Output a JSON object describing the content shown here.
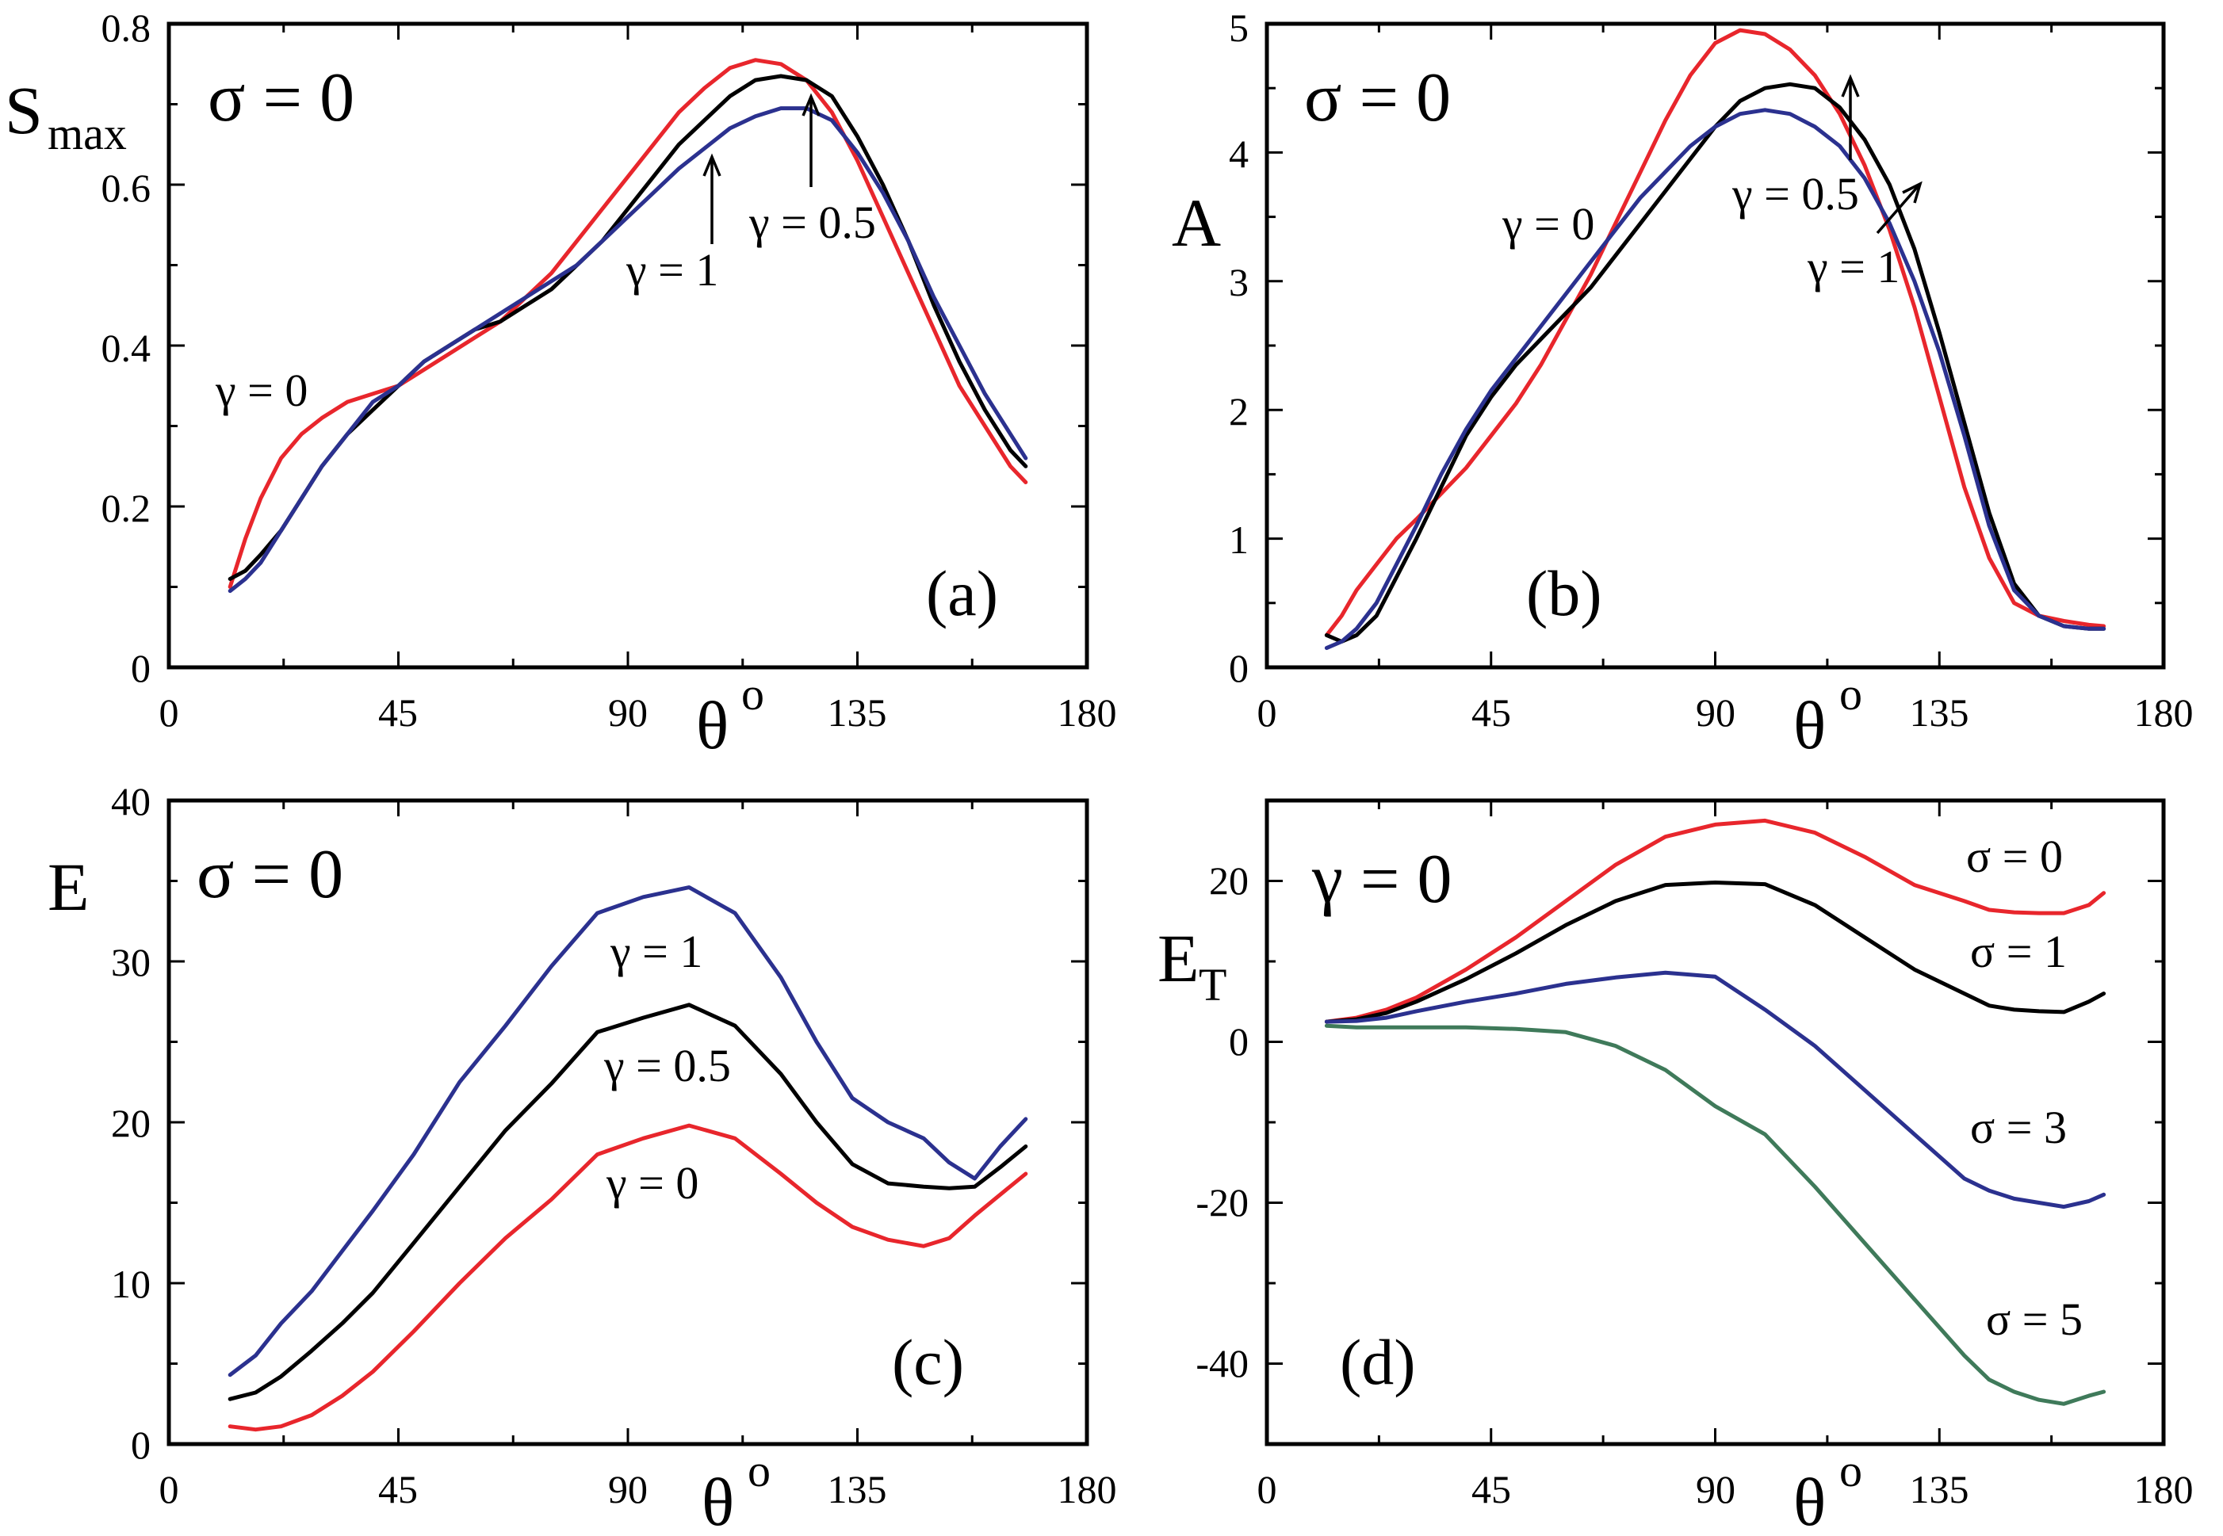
{
  "figure": "four-panel line chart figure",
  "chart_data": [
    {
      "type": "line",
      "panel": "(a)",
      "header": "σ = 0",
      "ylabel": "S",
      "ylabel_sub": "max",
      "xlabel": "θ",
      "xlabel_sup": "o",
      "xlim": [
        0,
        180
      ],
      "ylim": [
        0,
        0.8
      ],
      "xticks": [
        0,
        45,
        90,
        135,
        180
      ],
      "yticks": [
        0,
        0.2,
        0.4,
        0.6,
        0.8
      ],
      "ytick_labels": [
        "0",
        "0.2",
        "0.4",
        "0.6",
        "0.8"
      ],
      "series": [
        {
          "name": "γ = 0",
          "color": "#e8262c",
          "x": [
            12,
            15,
            18,
            22,
            26,
            30,
            35,
            40,
            45,
            50,
            55,
            60,
            65,
            70,
            75,
            80,
            85,
            90,
            95,
            100,
            105,
            110,
            115,
            120,
            125,
            130,
            135,
            140,
            145,
            150,
            155,
            160,
            165,
            168
          ],
          "y": [
            0.1,
            0.16,
            0.21,
            0.26,
            0.29,
            0.31,
            0.33,
            0.34,
            0.35,
            0.37,
            0.39,
            0.41,
            0.43,
            0.46,
            0.49,
            0.53,
            0.57,
            0.61,
            0.65,
            0.69,
            0.72,
            0.745,
            0.755,
            0.75,
            0.73,
            0.69,
            0.63,
            0.56,
            0.49,
            0.42,
            0.35,
            0.3,
            0.25,
            0.23
          ]
        },
        {
          "name": "γ = 0.5",
          "color": "#000000",
          "x": [
            12,
            15,
            18,
            22,
            26,
            30,
            35,
            40,
            45,
            50,
            55,
            60,
            65,
            70,
            75,
            80,
            85,
            90,
            95,
            100,
            105,
            110,
            115,
            120,
            125,
            130,
            135,
            140,
            145,
            150,
            155,
            160,
            165,
            168
          ],
          "y": [
            0.11,
            0.12,
            0.14,
            0.17,
            0.21,
            0.25,
            0.29,
            0.32,
            0.35,
            0.38,
            0.4,
            0.42,
            0.43,
            0.45,
            0.47,
            0.5,
            0.53,
            0.57,
            0.61,
            0.65,
            0.68,
            0.71,
            0.73,
            0.735,
            0.73,
            0.71,
            0.66,
            0.6,
            0.53,
            0.45,
            0.38,
            0.32,
            0.27,
            0.25
          ]
        },
        {
          "name": "γ = 1",
          "color": "#2b318f",
          "x": [
            12,
            15,
            18,
            22,
            26,
            30,
            35,
            40,
            45,
            50,
            55,
            60,
            65,
            70,
            75,
            80,
            85,
            90,
            95,
            100,
            105,
            110,
            115,
            120,
            125,
            130,
            135,
            140,
            145,
            150,
            155,
            160,
            165,
            168
          ],
          "y": [
            0.095,
            0.11,
            0.13,
            0.17,
            0.21,
            0.25,
            0.29,
            0.33,
            0.35,
            0.38,
            0.4,
            0.42,
            0.44,
            0.46,
            0.48,
            0.5,
            0.53,
            0.56,
            0.59,
            0.62,
            0.645,
            0.67,
            0.685,
            0.695,
            0.695,
            0.68,
            0.64,
            0.59,
            0.53,
            0.46,
            0.4,
            0.34,
            0.29,
            0.26
          ]
        }
      ],
      "annotations": [
        "γ = 0",
        "γ = 1",
        "γ = 0.5"
      ]
    },
    {
      "type": "line",
      "panel": "(b)",
      "header": "σ = 0",
      "ylabel": "A",
      "xlabel": "θ",
      "xlabel_sup": "o",
      "xlim": [
        0,
        180
      ],
      "ylim": [
        0,
        5
      ],
      "xticks": [
        0,
        45,
        90,
        135,
        180
      ],
      "yticks": [
        0,
        1,
        2,
        3,
        4,
        5
      ],
      "ytick_labels": [
        "0",
        "1",
        "2",
        "3",
        "4",
        "5"
      ],
      "series": [
        {
          "name": "γ = 0",
          "color": "#e8262c",
          "x": [
            12,
            15,
            18,
            22,
            26,
            30,
            35,
            40,
            45,
            50,
            55,
            60,
            65,
            70,
            75,
            80,
            85,
            90,
            95,
            100,
            105,
            110,
            115,
            120,
            125,
            130,
            135,
            140,
            145,
            150,
            155,
            160,
            165,
            168
          ],
          "y": [
            0.25,
            0.4,
            0.6,
            0.8,
            1.0,
            1.15,
            1.35,
            1.55,
            1.8,
            2.05,
            2.35,
            2.7,
            3.05,
            3.45,
            3.85,
            4.25,
            4.6,
            4.85,
            4.95,
            4.92,
            4.8,
            4.6,
            4.3,
            3.9,
            3.4,
            2.8,
            2.1,
            1.4,
            0.85,
            0.5,
            0.4,
            0.36,
            0.33,
            0.32
          ]
        },
        {
          "name": "γ = 0.5",
          "color": "#000000",
          "x": [
            12,
            15,
            18,
            22,
            26,
            30,
            35,
            40,
            45,
            50,
            55,
            60,
            65,
            70,
            75,
            80,
            85,
            90,
            95,
            100,
            105,
            110,
            115,
            120,
            125,
            130,
            135,
            140,
            145,
            150,
            155,
            160,
            165,
            168
          ],
          "y": [
            0.25,
            0.2,
            0.25,
            0.4,
            0.7,
            1.0,
            1.4,
            1.8,
            2.1,
            2.35,
            2.55,
            2.75,
            2.95,
            3.2,
            3.45,
            3.7,
            3.95,
            4.2,
            4.4,
            4.5,
            4.53,
            4.5,
            4.35,
            4.1,
            3.75,
            3.25,
            2.6,
            1.9,
            1.2,
            0.65,
            0.4,
            0.32,
            0.3,
            0.3
          ]
        },
        {
          "name": "γ = 1",
          "color": "#2b318f",
          "x": [
            12,
            15,
            18,
            22,
            26,
            30,
            35,
            40,
            45,
            50,
            55,
            60,
            65,
            70,
            75,
            80,
            85,
            90,
            95,
            100,
            105,
            110,
            115,
            120,
            125,
            130,
            135,
            140,
            145,
            150,
            155,
            160,
            165,
            168
          ],
          "y": [
            0.15,
            0.2,
            0.3,
            0.5,
            0.8,
            1.1,
            1.5,
            1.85,
            2.15,
            2.4,
            2.65,
            2.9,
            3.15,
            3.4,
            3.65,
            3.85,
            4.05,
            4.2,
            4.3,
            4.33,
            4.3,
            4.2,
            4.05,
            3.8,
            3.45,
            3.0,
            2.45,
            1.8,
            1.1,
            0.6,
            0.4,
            0.32,
            0.3,
            0.3
          ]
        }
      ],
      "annotations": [
        "γ = 0",
        "γ = 0.5",
        "γ = 1"
      ]
    },
    {
      "type": "line",
      "panel": "(c)",
      "header": "σ = 0",
      "ylabel": "E",
      "xlabel": "θ",
      "xlabel_sup": "o",
      "xlim": [
        0,
        180
      ],
      "ylim": [
        0,
        40
      ],
      "xticks": [
        0,
        45,
        90,
        135,
        180
      ],
      "yticks": [
        0,
        10,
        20,
        30,
        40
      ],
      "ytick_labels": [
        "0",
        "10",
        "20",
        "30",
        "40"
      ],
      "series": [
        {
          "name": "γ = 1",
          "color": "#2b318f",
          "x": [
            12,
            17,
            22,
            28,
            34,
            40,
            48,
            57,
            66,
            75,
            84,
            93,
            102,
            111,
            120,
            127,
            134,
            141,
            148,
            153,
            158,
            163,
            168
          ],
          "y": [
            4.3,
            5.5,
            7.5,
            9.5,
            12,
            14.5,
            18,
            22.5,
            26,
            29.7,
            33,
            34,
            34.6,
            33,
            29,
            25,
            21.5,
            20,
            19,
            17.5,
            16.5,
            18.5,
            20.2
          ]
        },
        {
          "name": "γ = 0.5",
          "color": "#000000",
          "x": [
            12,
            17,
            22,
            28,
            34,
            40,
            48,
            57,
            66,
            75,
            84,
            93,
            102,
            111,
            120,
            127,
            134,
            141,
            148,
            153,
            158,
            163,
            168
          ],
          "y": [
            2.8,
            3.2,
            4.2,
            5.8,
            7.5,
            9.4,
            12.5,
            16,
            19.5,
            22.4,
            25.6,
            26.5,
            27.3,
            26,
            23,
            20,
            17.4,
            16.2,
            16.0,
            15.9,
            16.0,
            17.2,
            18.5
          ]
        },
        {
          "name": "γ = 0",
          "color": "#e8262c",
          "x": [
            12,
            17,
            22,
            28,
            34,
            40,
            48,
            57,
            66,
            75,
            84,
            93,
            102,
            111,
            120,
            127,
            134,
            141,
            148,
            153,
            158,
            163,
            168
          ],
          "y": [
            1.1,
            0.9,
            1.1,
            1.8,
            3.0,
            4.5,
            7,
            10,
            12.8,
            15.2,
            18,
            19,
            19.8,
            19,
            16.8,
            15,
            13.5,
            12.7,
            12.3,
            12.8,
            14.2,
            15.5,
            16.8
          ]
        }
      ],
      "annotations": [
        "γ = 1",
        "γ = 0.5",
        "γ = 0"
      ]
    },
    {
      "type": "line",
      "panel": "(d)",
      "header": "γ = 0",
      "ylabel": "E",
      "ylabel_sub": "T",
      "xlabel": "θ",
      "xlabel_sup": "o",
      "xlim": [
        0,
        180
      ],
      "ylim": [
        -50,
        30
      ],
      "xticks": [
        0,
        45,
        90,
        135,
        180
      ],
      "yticks": [
        -40,
        -20,
        0,
        20
      ],
      "ytick_labels": [
        "-40",
        "-20",
        "0",
        "20"
      ],
      "series": [
        {
          "name": "σ = 0",
          "color": "#e8262c",
          "x": [
            12,
            18,
            24,
            30,
            40,
            50,
            60,
            70,
            80,
            90,
            100,
            110,
            120,
            130,
            140,
            145,
            150,
            155,
            160,
            165,
            168
          ],
          "y": [
            2.5,
            3.0,
            4.0,
            5.5,
            9,
            13,
            17.5,
            22,
            25.5,
            27,
            27.5,
            26,
            23,
            19.5,
            17.5,
            16.4,
            16.1,
            16,
            16,
            17,
            18.5
          ]
        },
        {
          "name": "σ = 1",
          "color": "#000000",
          "x": [
            12,
            18,
            24,
            30,
            40,
            50,
            60,
            70,
            80,
            90,
            100,
            110,
            120,
            130,
            140,
            145,
            150,
            155,
            160,
            165,
            168
          ],
          "y": [
            2.5,
            2.8,
            3.6,
            5,
            7.8,
            11,
            14.5,
            17.5,
            19.5,
            19.8,
            19.6,
            17,
            13,
            9,
            6,
            4.5,
            4,
            3.8,
            3.7,
            5,
            6
          ]
        },
        {
          "name": "σ = 3",
          "color": "#2b318f",
          "x": [
            12,
            18,
            24,
            30,
            40,
            50,
            60,
            70,
            80,
            90,
            100,
            110,
            120,
            130,
            140,
            145,
            150,
            155,
            160,
            165,
            168
          ],
          "y": [
            2.5,
            2.6,
            3,
            3.8,
            5,
            6,
            7.2,
            8,
            8.6,
            8.1,
            4,
            -0.5,
            -6,
            -11.5,
            -17,
            -18.5,
            -19.5,
            -20,
            -20.5,
            -19.8,
            -19
          ]
        },
        {
          "name": "σ = 5",
          "color": "#3f7a5a",
          "x": [
            12,
            18,
            24,
            30,
            40,
            50,
            60,
            70,
            80,
            90,
            100,
            110,
            120,
            130,
            140,
            145,
            150,
            155,
            160,
            165,
            168
          ],
          "y": [
            2.0,
            1.8,
            1.8,
            1.8,
            1.8,
            1.6,
            1.2,
            -0.5,
            -3.5,
            -8,
            -11.5,
            -18,
            -25,
            -32,
            -39,
            -42,
            -43.5,
            -44.5,
            -45,
            -44,
            -43.5
          ]
        }
      ],
      "annotations": [
        "σ = 0",
        "σ = 1",
        "σ = 3",
        "σ = 5"
      ]
    }
  ]
}
